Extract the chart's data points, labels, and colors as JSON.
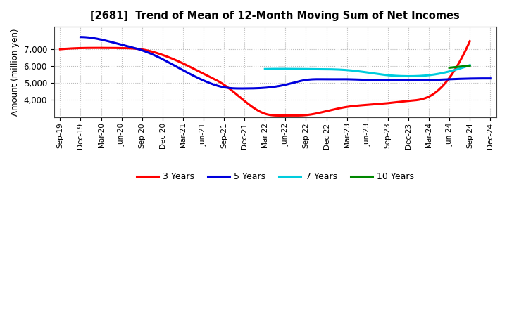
{
  "title": "[2681]  Trend of Mean of 12-Month Moving Sum of Net Incomes",
  "ylabel": "Amount (million yen)",
  "ylim": [
    3000,
    8300
  ],
  "yticks": [
    4000,
    5000,
    6000,
    7000
  ],
  "background_color": "#ffffff",
  "plot_bg_color": "#ffffff",
  "x_labels": [
    "Sep-19",
    "Dec-19",
    "Mar-20",
    "Jun-20",
    "Sep-20",
    "Dec-20",
    "Mar-21",
    "Jun-21",
    "Sep-21",
    "Dec-21",
    "Mar-22",
    "Jun-22",
    "Sep-22",
    "Dec-22",
    "Mar-23",
    "Jun-23",
    "Sep-23",
    "Dec-23",
    "Mar-24",
    "Jun-24",
    "Sep-24",
    "Dec-24"
  ],
  "series": {
    "3 Years": {
      "color": "#ff0000",
      "values": [
        6980,
        7050,
        7060,
        7050,
        6970,
        6650,
        6150,
        5550,
        4900,
        3950,
        3200,
        3100,
        3120,
        3350,
        3600,
        3720,
        3820,
        3950,
        4200,
        5300,
        7450,
        null
      ]
    },
    "5 Years": {
      "color": "#0000dd",
      "values": [
        null,
        7700,
        7550,
        7250,
        6920,
        6400,
        5750,
        5150,
        4750,
        4680,
        4720,
        4900,
        5180,
        5220,
        5220,
        5180,
        5160,
        5160,
        5170,
        5220,
        5260,
        5270
      ]
    },
    "7 Years": {
      "color": "#00ccdd",
      "values": [
        null,
        null,
        null,
        null,
        null,
        null,
        null,
        null,
        null,
        null,
        5820,
        5830,
        5820,
        5810,
        5760,
        5620,
        5460,
        5400,
        5460,
        5680,
        6050,
        null
      ]
    },
    "10 Years": {
      "color": "#008800",
      "values": [
        null,
        null,
        null,
        null,
        null,
        null,
        null,
        null,
        null,
        null,
        null,
        null,
        null,
        null,
        null,
        null,
        null,
        null,
        null,
        5900,
        6020,
        null
      ]
    }
  },
  "legend_order": [
    "3 Years",
    "5 Years",
    "7 Years",
    "10 Years"
  ],
  "grid_color": "#bbbbbb",
  "grid_style": ":"
}
